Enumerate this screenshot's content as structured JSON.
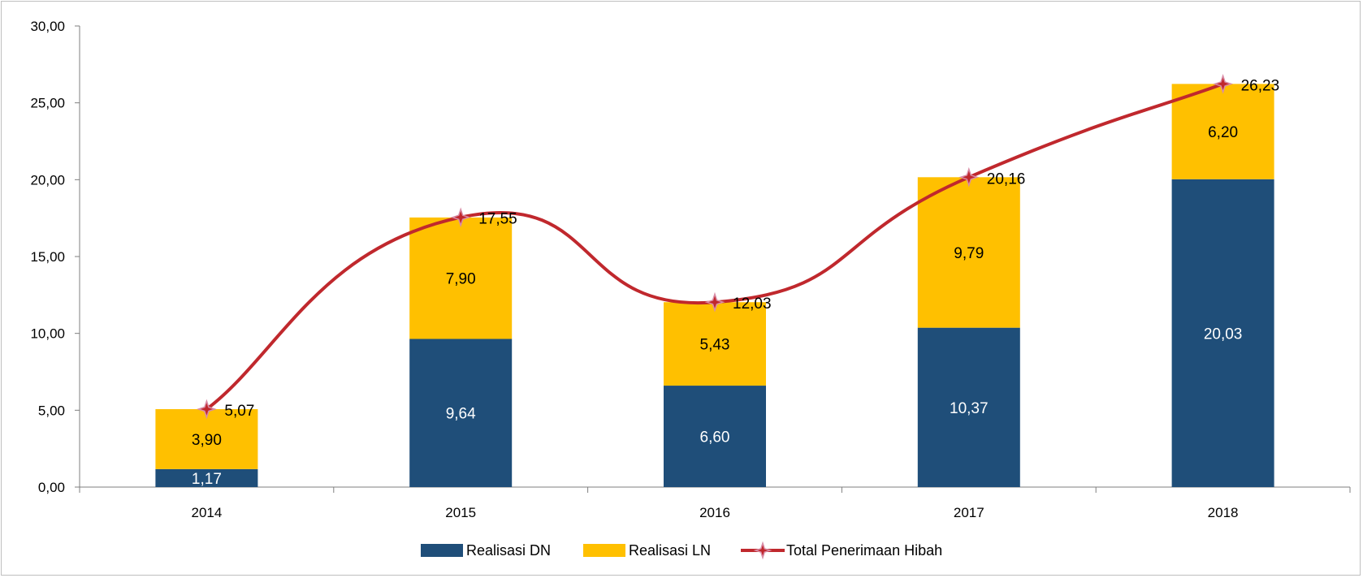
{
  "chart_data": {
    "type": "bar",
    "stacked": true,
    "categories": [
      "2014",
      "2015",
      "2016",
      "2017",
      "2018"
    ],
    "series": [
      {
        "name": "Realisasi DN",
        "type": "bar",
        "color": "#1f4e79",
        "values": [
          1.17,
          9.64,
          6.6,
          10.37,
          20.03
        ],
        "labels": [
          "1,17",
          "9,64",
          "6,60",
          "10,37",
          "20,03"
        ]
      },
      {
        "name": "Realisasi LN",
        "type": "bar",
        "color": "#ffc000",
        "values": [
          3.9,
          7.9,
          5.43,
          9.79,
          6.2
        ],
        "labels": [
          "3,90",
          "7,90",
          "5,43",
          "9,79",
          "6,20"
        ]
      },
      {
        "name": "Total Penerimaan Hibah",
        "type": "line",
        "color": "#c0282d",
        "values": [
          5.07,
          17.55,
          12.03,
          20.16,
          26.23
        ],
        "labels": [
          "5,07",
          "17,55",
          "12,03",
          "20,16",
          "26,23"
        ]
      }
    ],
    "ylim": [
      0,
      30
    ],
    "yticks": [
      "0,00",
      "5,00",
      "10,00",
      "15,00",
      "20,00",
      "25,00",
      "30,00"
    ],
    "grid": false,
    "legend": "bottom"
  }
}
